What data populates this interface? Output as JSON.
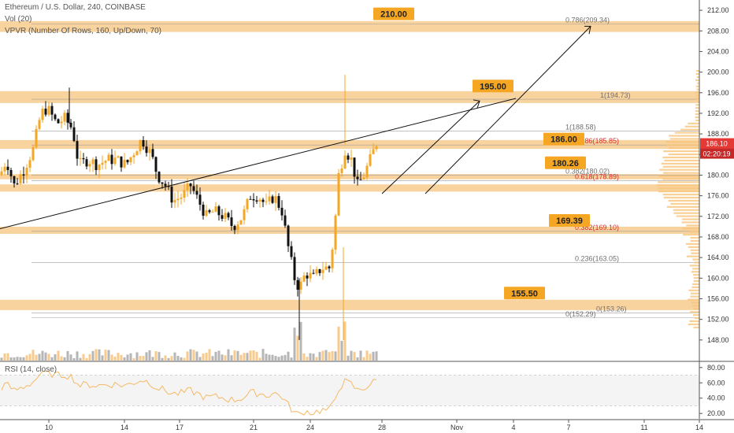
{
  "header": {
    "symbol": "Ethereum / U.S. Dollar, 240, COINBASE",
    "vol": "Vol (20)",
    "vpvr": "VPVR (Number Of Rows, 160, Up/Down, 70)",
    "rsi": "RSI (14, close)"
  },
  "chart_data": {
    "type": "candlestick",
    "price_axis": {
      "ylim": [
        144,
        214
      ],
      "ticks": [
        "212.00",
        "208.00",
        "204.00",
        "200.00",
        "196.00",
        "192.00",
        "188.00",
        "184.00",
        "180.00",
        "176.00",
        "172.00",
        "168.00",
        "164.00",
        "160.00",
        "156.00",
        "152.00",
        "148.00"
      ]
    },
    "rsi_axis": {
      "ylim": [
        13,
        87
      ],
      "ticks": [
        "80.00",
        "60.00",
        "40.00",
        "20.00"
      ]
    },
    "x_ticks": [
      "10",
      "14",
      "17",
      "21",
      "24",
      "28",
      "Nov",
      "4",
      "7",
      "11",
      "14"
    ],
    "last_price": "186.10",
    "countdown": "02:20:19",
    "zones": [
      {
        "top": 209.9,
        "bottom": 207.8
      },
      {
        "top": 196.3,
        "bottom": 194.0
      },
      {
        "top": 186.8,
        "bottom": 185.1
      },
      {
        "top": 180.2,
        "bottom": 179.2
      },
      {
        "top": 178.2,
        "bottom": 176.8
      },
      {
        "top": 170.0,
        "bottom": 168.6
      },
      {
        "top": 155.8,
        "bottom": 153.8
      }
    ],
    "callouts": [
      "210.00",
      "195.00",
      "186.00",
      "180.26",
      "169.39",
      "155.50"
    ],
    "fib_levels": [
      {
        "label": "0.786(209.34)",
        "value": 209.34,
        "color": "#707070"
      },
      {
        "label": "1(194.73)",
        "value": 194.73,
        "color": "#707070"
      },
      {
        "label": "1(188.58)",
        "value": 188.58,
        "color": "#707070"
      },
      {
        "label": "0.786(185.85)",
        "value": 185.85,
        "color": "#d32f2f"
      },
      {
        "label": "0.382(180.02)",
        "value": 180.02,
        "color": "#707070"
      },
      {
        "label": "0.618(178.89)",
        "value": 178.89,
        "color": "#d32f2f"
      },
      {
        "label": "0.382(169.10)",
        "value": 169.1,
        "color": "#d32f2f"
      },
      {
        "label": "0.236(163.05)",
        "value": 163.05,
        "color": "#707070"
      },
      {
        "label": "0(153.26)",
        "value": 153.26,
        "color": "#707070"
      },
      {
        "label": "0(152.29)",
        "value": 152.29,
        "color": "#707070"
      }
    ],
    "colors": {
      "up": "#f5a623",
      "down": "#111111",
      "zone": "#f7c47c",
      "callout": "#f5a623",
      "fib_red": "#d32f2f"
    }
  }
}
